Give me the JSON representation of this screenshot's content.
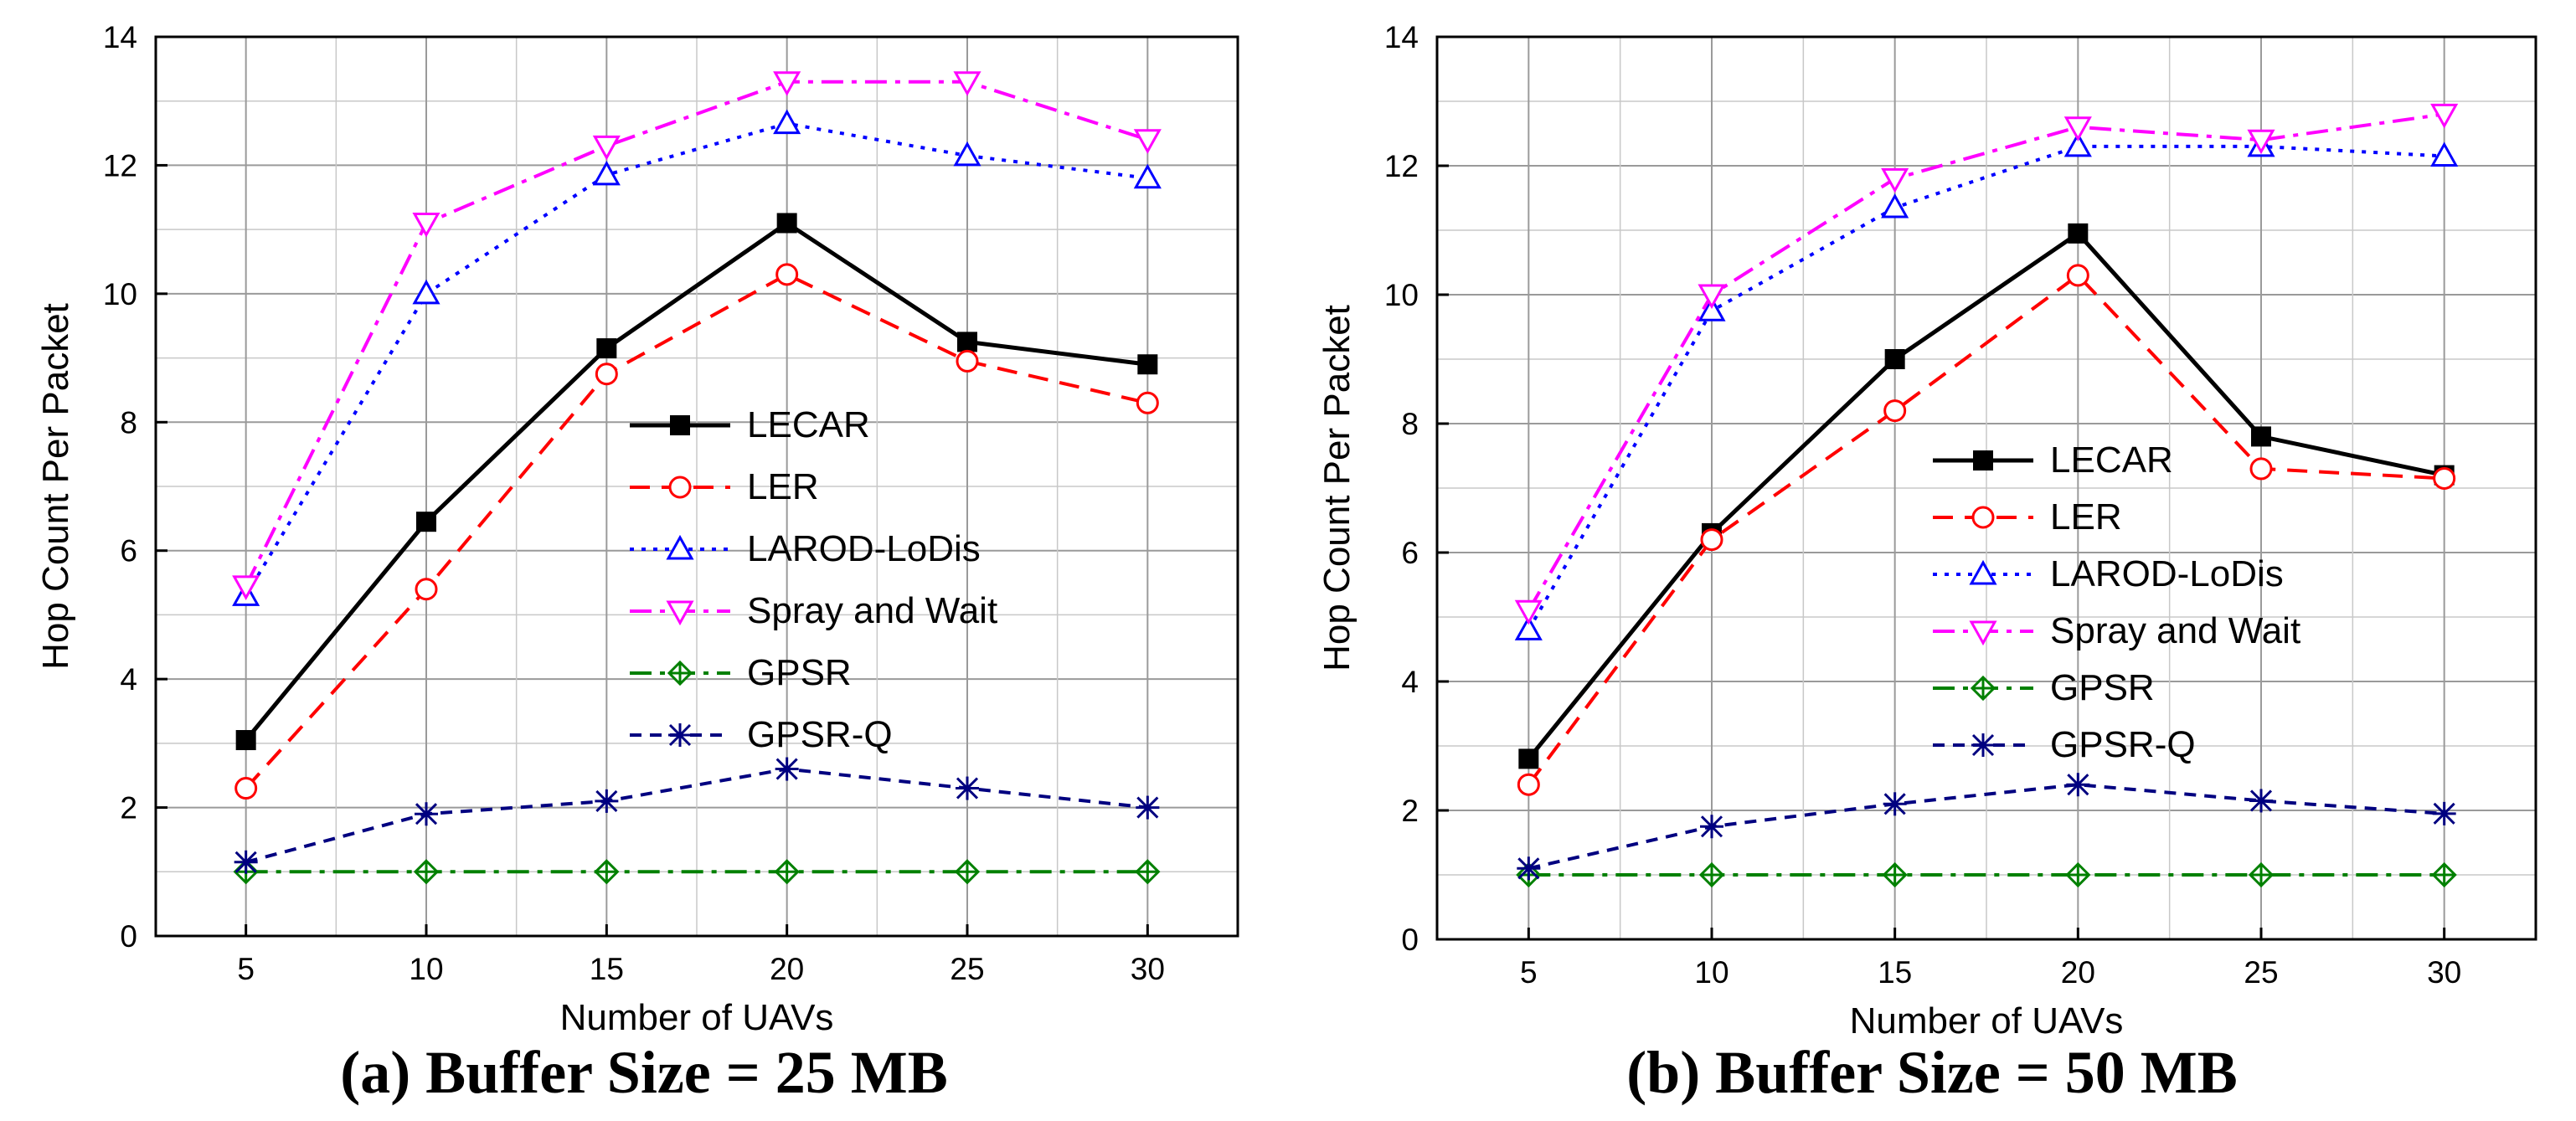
{
  "chart_data": [
    {
      "type": "line",
      "caption": "(a) Buffer Size = 25 MB",
      "xlabel": "Number of UAVs",
      "ylabel": "Hop Count Per Packet",
      "x": [
        5,
        10,
        15,
        20,
        25,
        30
      ],
      "xlim": [
        2.5,
        32.5
      ],
      "ylim": [
        0,
        14
      ],
      "xticks": [
        "5",
        "10",
        "15",
        "20",
        "25",
        "30"
      ],
      "yticks": [
        "0",
        "2",
        "4",
        "6",
        "8",
        "10",
        "12",
        "14"
      ],
      "grid": true,
      "legend_position": "center-right",
      "series": [
        {
          "name": "LECAR",
          "values": [
            3.05,
            6.45,
            9.15,
            11.1,
            9.25,
            8.9
          ],
          "color": "#000000",
          "dash": "solid",
          "marker": "square-filled"
        },
        {
          "name": "LER",
          "values": [
            2.3,
            5.4,
            8.75,
            10.3,
            8.95,
            8.3
          ],
          "color": "#ff0000",
          "dash": "dash",
          "marker": "circle-open"
        },
        {
          "name": "LAROD-LoDis",
          "values": [
            5.3,
            10.0,
            11.85,
            12.65,
            12.15,
            11.8
          ],
          "color": "#0000ff",
          "dash": "dot",
          "marker": "triangle-up-open"
        },
        {
          "name": "Spray and Wait",
          "values": [
            5.45,
            11.1,
            12.3,
            13.3,
            13.3,
            12.4
          ],
          "color": "#ff00ff",
          "dash": "dashdot",
          "marker": "triangle-down-open"
        },
        {
          "name": "GPSR",
          "values": [
            1.0,
            1.0,
            1.0,
            1.0,
            1.0,
            1.0
          ],
          "color": "#008000",
          "dash": "dashdot",
          "marker": "diamond-cross"
        },
        {
          "name": "GPSR-Q",
          "values": [
            1.15,
            1.9,
            2.1,
            2.6,
            2.3,
            2.0
          ],
          "color": "#000080",
          "dash": "shortdash",
          "marker": "star-x"
        }
      ]
    },
    {
      "type": "line",
      "caption": "(b) Buffer Size = 50 MB",
      "xlabel": "Number of UAVs",
      "ylabel": "Hop Count Per Packet",
      "x": [
        5,
        10,
        15,
        20,
        25,
        30
      ],
      "xlim": [
        2.5,
        32.5
      ],
      "ylim": [
        0,
        14
      ],
      "xticks": [
        "5",
        "10",
        "15",
        "20",
        "25",
        "30"
      ],
      "yticks": [
        "0",
        "2",
        "4",
        "6",
        "8",
        "10",
        "12",
        "14"
      ],
      "grid": true,
      "legend_position": "center-right",
      "series": [
        {
          "name": "LECAR",
          "values": [
            2.8,
            6.3,
            9.0,
            10.95,
            7.8,
            7.2
          ],
          "color": "#000000",
          "dash": "solid",
          "marker": "square-filled"
        },
        {
          "name": "LER",
          "values": [
            2.4,
            6.2,
            8.2,
            10.3,
            7.3,
            7.15
          ],
          "color": "#ff0000",
          "dash": "dash",
          "marker": "circle-open"
        },
        {
          "name": "LAROD-LoDis",
          "values": [
            4.8,
            9.75,
            11.35,
            12.3,
            12.3,
            12.15
          ],
          "color": "#0000ff",
          "dash": "dot",
          "marker": "triangle-up-open"
        },
        {
          "name": "Spray and Wait",
          "values": [
            5.1,
            10.0,
            11.8,
            12.6,
            12.4,
            12.8
          ],
          "color": "#ff00ff",
          "dash": "dashdot",
          "marker": "triangle-down-open"
        },
        {
          "name": "GPSR",
          "values": [
            1.0,
            1.0,
            1.0,
            1.0,
            1.0,
            1.0
          ],
          "color": "#008000",
          "dash": "dashdot",
          "marker": "diamond-cross"
        },
        {
          "name": "GPSR-Q",
          "values": [
            1.1,
            1.75,
            2.1,
            2.4,
            2.15,
            1.95
          ],
          "color": "#000080",
          "dash": "shortdash",
          "marker": "star-x"
        }
      ]
    }
  ]
}
